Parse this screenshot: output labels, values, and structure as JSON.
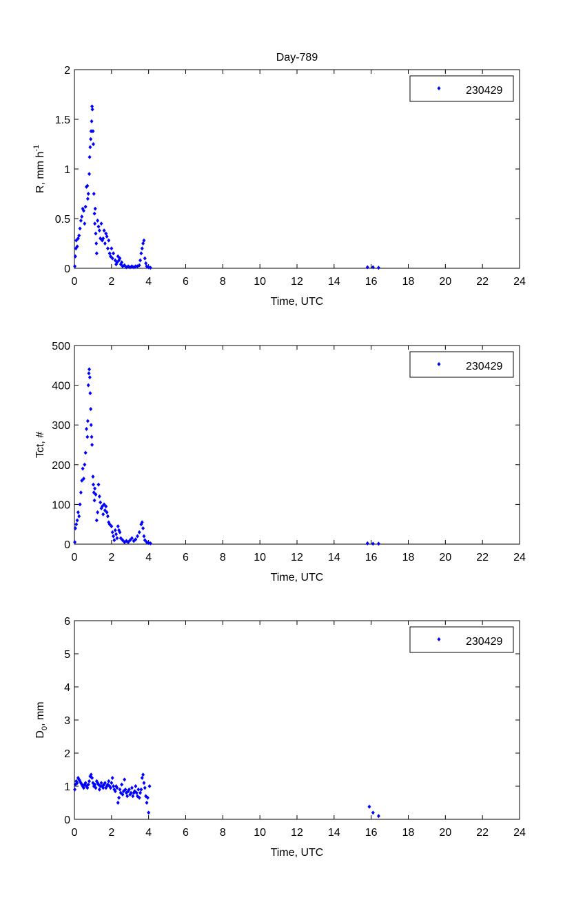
{
  "chart_data": {
    "type": "scatter",
    "title": "Day-789",
    "marker_color": "#0000ff",
    "panels": [
      {
        "ylabel_main": "R, mm h",
        "ylabel_sup": "-1",
        "ylabel_sub": "",
        "xlabel": "Time, UTC",
        "xlim": [
          0,
          24
        ],
        "ylim": [
          0,
          2
        ],
        "xticks": [
          "0",
          "2",
          "4",
          "6",
          "8",
          "10",
          "12",
          "14",
          "16",
          "18",
          "20",
          "22",
          "24"
        ],
        "yticks": [
          "0",
          "0.5",
          "1",
          "1.5",
          "2"
        ],
        "legend": "230429",
        "legend_position": "top-right",
        "points": [
          [
            0.02,
            0.02
          ],
          [
            0.05,
            0.12
          ],
          [
            0.08,
            0.2
          ],
          [
            0.1,
            0.28
          ],
          [
            0.15,
            0.22
          ],
          [
            0.2,
            0.3
          ],
          [
            0.25,
            0.33
          ],
          [
            0.3,
            0.4
          ],
          [
            0.35,
            0.48
          ],
          [
            0.4,
            0.52
          ],
          [
            0.45,
            0.6
          ],
          [
            0.5,
            0.58
          ],
          [
            0.55,
            0.45
          ],
          [
            0.6,
            0.62
          ],
          [
            0.65,
            0.82
          ],
          [
            0.7,
            0.83
          ],
          [
            0.72,
            0.7
          ],
          [
            0.75,
            0.75
          ],
          [
            0.8,
            0.95
          ],
          [
            0.82,
            1.12
          ],
          [
            0.85,
            1.22
          ],
          [
            0.88,
            1.3
          ],
          [
            0.9,
            1.38
          ],
          [
            0.93,
            1.48
          ],
          [
            0.95,
            1.63
          ],
          [
            0.97,
            1.6
          ],
          [
            1.0,
            1.38
          ],
          [
            1.02,
            1.25
          ],
          [
            1.05,
            0.75
          ],
          [
            1.08,
            0.55
          ],
          [
            1.1,
            0.45
          ],
          [
            1.12,
            0.6
          ],
          [
            1.15,
            0.35
          ],
          [
            1.18,
            0.25
          ],
          [
            1.2,
            0.15
          ],
          [
            1.25,
            0.48
          ],
          [
            1.3,
            0.42
          ],
          [
            1.35,
            0.38
          ],
          [
            1.4,
            0.3
          ],
          [
            1.45,
            0.45
          ],
          [
            1.5,
            0.28
          ],
          [
            1.55,
            0.3
          ],
          [
            1.6,
            0.38
          ],
          [
            1.65,
            0.25
          ],
          [
            1.7,
            0.35
          ],
          [
            1.75,
            0.32
          ],
          [
            1.8,
            0.2
          ],
          [
            1.85,
            0.28
          ],
          [
            1.9,
            0.15
          ],
          [
            1.95,
            0.12
          ],
          [
            2.0,
            0.2
          ],
          [
            2.05,
            0.1
          ],
          [
            2.1,
            0.15
          ],
          [
            2.2,
            0.08
          ],
          [
            2.25,
            0.04
          ],
          [
            2.3,
            0.06
          ],
          [
            2.35,
            0.12
          ],
          [
            2.4,
            0.08
          ],
          [
            2.45,
            0.1
          ],
          [
            2.5,
            0.04
          ],
          [
            2.55,
            0.06
          ],
          [
            2.6,
            0.02
          ],
          [
            2.7,
            0.03
          ],
          [
            2.8,
            0.01
          ],
          [
            2.9,
            0.02
          ],
          [
            3.0,
            0.01
          ],
          [
            3.1,
            0.02
          ],
          [
            3.2,
            0.01
          ],
          [
            3.3,
            0.02
          ],
          [
            3.4,
            0.02
          ],
          [
            3.5,
            0.03
          ],
          [
            3.55,
            0.08
          ],
          [
            3.6,
            0.15
          ],
          [
            3.65,
            0.2
          ],
          [
            3.7,
            0.25
          ],
          [
            3.75,
            0.28
          ],
          [
            3.8,
            0.1
          ],
          [
            3.85,
            0.05
          ],
          [
            3.9,
            0.02
          ],
          [
            4.0,
            0.01
          ],
          [
            4.1,
            0.005
          ],
          [
            15.8,
            0.01
          ],
          [
            16.1,
            0.01
          ],
          [
            16.4,
            0.005
          ]
        ]
      },
      {
        "ylabel_main": "Tct, #",
        "ylabel_sup": "",
        "ylabel_sub": "",
        "xlabel": "Time, UTC",
        "xlim": [
          0,
          24
        ],
        "ylim": [
          0,
          500
        ],
        "xticks": [
          "0",
          "2",
          "4",
          "6",
          "8",
          "10",
          "12",
          "14",
          "16",
          "18",
          "20",
          "22",
          "24"
        ],
        "yticks": [
          "0",
          "100",
          "200",
          "300",
          "400",
          "500"
        ],
        "legend": "230429",
        "legend_position": "top-right",
        "points": [
          [
            0.02,
            5
          ],
          [
            0.05,
            40
          ],
          [
            0.1,
            50
          ],
          [
            0.15,
            60
          ],
          [
            0.2,
            80
          ],
          [
            0.25,
            70
          ],
          [
            0.3,
            100
          ],
          [
            0.35,
            130
          ],
          [
            0.4,
            160
          ],
          [
            0.45,
            190
          ],
          [
            0.5,
            165
          ],
          [
            0.55,
            200
          ],
          [
            0.6,
            230
          ],
          [
            0.65,
            290
          ],
          [
            0.7,
            270
          ],
          [
            0.72,
            310
          ],
          [
            0.75,
            400
          ],
          [
            0.78,
            430
          ],
          [
            0.8,
            440
          ],
          [
            0.83,
            420
          ],
          [
            0.85,
            380
          ],
          [
            0.88,
            340
          ],
          [
            0.9,
            300
          ],
          [
            0.93,
            270
          ],
          [
            0.95,
            250
          ],
          [
            1.0,
            170
          ],
          [
            1.02,
            150
          ],
          [
            1.05,
            130
          ],
          [
            1.08,
            110
          ],
          [
            1.1,
            140
          ],
          [
            1.15,
            125
          ],
          [
            1.2,
            60
          ],
          [
            1.25,
            80
          ],
          [
            1.3,
            150
          ],
          [
            1.35,
            120
          ],
          [
            1.4,
            105
          ],
          [
            1.45,
            90
          ],
          [
            1.5,
            95
          ],
          [
            1.55,
            75
          ],
          [
            1.6,
            100
          ],
          [
            1.65,
            85
          ],
          [
            1.7,
            95
          ],
          [
            1.75,
            80
          ],
          [
            1.8,
            70
          ],
          [
            1.85,
            55
          ],
          [
            1.9,
            50
          ],
          [
            2.0,
            45
          ],
          [
            2.05,
            30
          ],
          [
            2.1,
            20
          ],
          [
            2.15,
            10
          ],
          [
            2.2,
            35
          ],
          [
            2.25,
            25
          ],
          [
            2.3,
            15
          ],
          [
            2.35,
            45
          ],
          [
            2.4,
            35
          ],
          [
            2.45,
            30
          ],
          [
            2.5,
            15
          ],
          [
            2.6,
            10
          ],
          [
            2.7,
            5
          ],
          [
            2.8,
            8
          ],
          [
            2.9,
            5
          ],
          [
            3.0,
            10
          ],
          [
            3.1,
            15
          ],
          [
            3.2,
            8
          ],
          [
            3.3,
            12
          ],
          [
            3.4,
            20
          ],
          [
            3.5,
            30
          ],
          [
            3.6,
            50
          ],
          [
            3.65,
            55
          ],
          [
            3.7,
            40
          ],
          [
            3.75,
            20
          ],
          [
            3.8,
            10
          ],
          [
            3.9,
            5
          ],
          [
            4.0,
            3
          ],
          [
            4.1,
            2
          ],
          [
            15.8,
            2
          ],
          [
            16.1,
            1
          ],
          [
            16.4,
            1
          ]
        ]
      },
      {
        "ylabel_main": "D",
        "ylabel_sup": "",
        "ylabel_sub": "0",
        "ylabel_tail": ", mm",
        "xlabel": "Time, UTC",
        "xlim": [
          0,
          24
        ],
        "ylim": [
          0,
          6
        ],
        "xticks": [
          "0",
          "2",
          "4",
          "6",
          "8",
          "10",
          "12",
          "14",
          "16",
          "18",
          "20",
          "22",
          "24"
        ],
        "yticks": [
          "0",
          "1",
          "2",
          "3",
          "4",
          "5",
          "6"
        ],
        "legend": "230429",
        "legend_position": "top-right",
        "points": [
          [
            0.02,
            0.9
          ],
          [
            0.05,
            1.05
          ],
          [
            0.1,
            1.15
          ],
          [
            0.15,
            1.1
          ],
          [
            0.2,
            1.25
          ],
          [
            0.25,
            1.2
          ],
          [
            0.3,
            1.15
          ],
          [
            0.35,
            1.1
          ],
          [
            0.4,
            1.05
          ],
          [
            0.45,
            1.0
          ],
          [
            0.5,
            0.95
          ],
          [
            0.55,
            1.05
          ],
          [
            0.6,
            1.1
          ],
          [
            0.65,
            1.0
          ],
          [
            0.7,
            0.95
          ],
          [
            0.75,
            1.05
          ],
          [
            0.8,
            1.15
          ],
          [
            0.85,
            1.3
          ],
          [
            0.9,
            1.35
          ],
          [
            0.95,
            1.25
          ],
          [
            1.0,
            1.1
          ],
          [
            1.05,
            1.0
          ],
          [
            1.1,
            1.05
          ],
          [
            1.15,
            0.95
          ],
          [
            1.2,
            1.15
          ],
          [
            1.25,
            1.1
          ],
          [
            1.3,
            1.05
          ],
          [
            1.35,
            0.9
          ],
          [
            1.4,
            1.0
          ],
          [
            1.45,
            1.1
          ],
          [
            1.5,
            1.0
          ],
          [
            1.55,
            0.95
          ],
          [
            1.6,
            1.05
          ],
          [
            1.65,
            1.1
          ],
          [
            1.7,
            0.95
          ],
          [
            1.75,
            1.0
          ],
          [
            1.8,
            1.05
          ],
          [
            1.85,
            1.15
          ],
          [
            1.9,
            1.0
          ],
          [
            1.95,
            0.95
          ],
          [
            2.0,
            1.1
          ],
          [
            2.05,
            1.25
          ],
          [
            2.1,
            1.0
          ],
          [
            2.15,
            0.9
          ],
          [
            2.2,
            0.85
          ],
          [
            2.25,
            1.0
          ],
          [
            2.3,
            0.95
          ],
          [
            2.35,
            0.5
          ],
          [
            2.4,
            0.65
          ],
          [
            2.45,
            0.9
          ],
          [
            2.5,
            0.8
          ],
          [
            2.55,
            1.05
          ],
          [
            2.6,
            0.75
          ],
          [
            2.65,
            0.85
          ],
          [
            2.7,
            1.2
          ],
          [
            2.75,
            0.9
          ],
          [
            2.8,
            0.8
          ],
          [
            2.85,
            0.7
          ],
          [
            2.9,
            0.85
          ],
          [
            2.95,
            0.9
          ],
          [
            3.0,
            0.75
          ],
          [
            3.05,
            0.8
          ],
          [
            3.1,
            0.95
          ],
          [
            3.15,
            0.7
          ],
          [
            3.2,
            0.8
          ],
          [
            3.25,
            0.85
          ],
          [
            3.3,
            1.0
          ],
          [
            3.35,
            0.8
          ],
          [
            3.4,
            0.7
          ],
          [
            3.45,
            0.9
          ],
          [
            3.5,
            0.65
          ],
          [
            3.55,
            0.8
          ],
          [
            3.6,
            0.9
          ],
          [
            3.65,
            1.25
          ],
          [
            3.7,
            1.35
          ],
          [
            3.75,
            1.1
          ],
          [
            3.8,
            0.95
          ],
          [
            3.85,
            0.7
          ],
          [
            3.9,
            0.5
          ],
          [
            3.95,
            0.65
          ],
          [
            4.0,
            0.2
          ],
          [
            4.05,
            1.0
          ],
          [
            15.9,
            0.38
          ],
          [
            16.1,
            0.2
          ],
          [
            16.4,
            0.1
          ]
        ]
      }
    ]
  }
}
